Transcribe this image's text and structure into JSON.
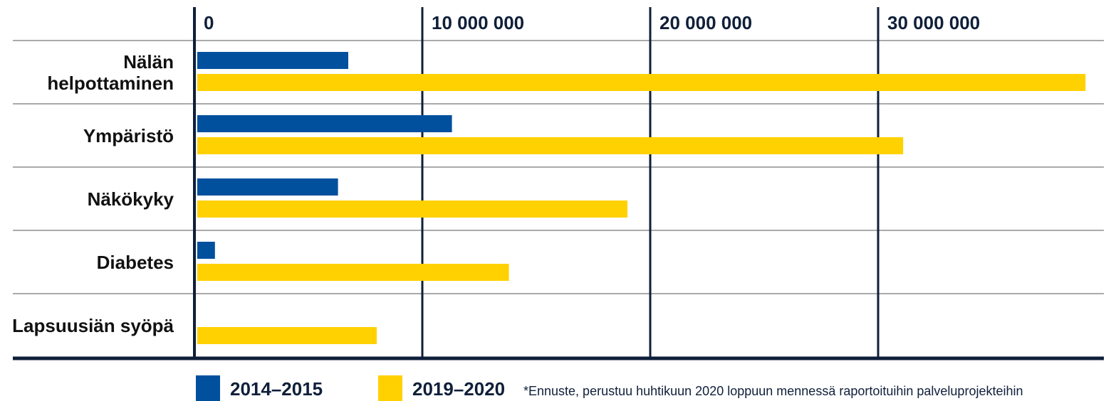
{
  "chart_data": {
    "type": "hbar",
    "categories": [
      "Nälän helpottaminen",
      "Ympäristö",
      "Näkökyky",
      "Diabetes",
      "Lapsuusiän syöpä"
    ],
    "series": [
      {
        "name": "2014–2015",
        "color": "#00509e",
        "values": [
          6750000,
          11300000,
          6300000,
          900000,
          null
        ]
      },
      {
        "name": "2019–2020",
        "color": "#ffd100",
        "values": [
          39100000,
          31100000,
          19000000,
          13800000,
          8000000
        ]
      }
    ],
    "xlim": [
      0,
      40000000
    ],
    "xticks": [
      0,
      {
        "value": 10000000,
        "label": "10 000 000"
      },
      {
        "value": 20000000,
        "label": "20 000 000"
      },
      {
        "value": 30000000,
        "label": "30 000 000"
      }
    ],
    "grid": true,
    "footnote": "*Ennuste, perustuu huhtikuun 2020 loppuun mennessä raportoituihin palveluprojekteihin"
  }
}
